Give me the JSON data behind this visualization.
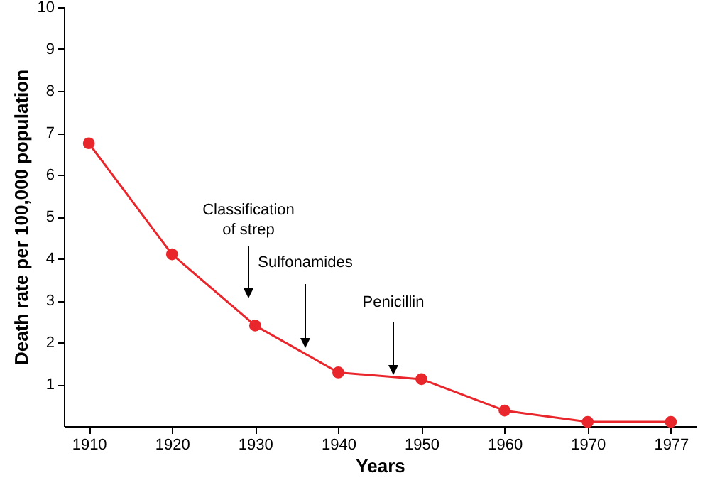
{
  "chart_data": {
    "type": "line",
    "xlabel": "Years",
    "ylabel": "Death rate per 100,000 population",
    "categories": [
      "1910",
      "1920",
      "1930",
      "1940",
      "1950",
      "1960",
      "1970",
      "1977"
    ],
    "series": [
      {
        "color": "#e8262b",
        "values": [
          6.75,
          4.1,
          2.4,
          1.28,
          1.12,
          0.37,
          0.1,
          0.1
        ]
      }
    ],
    "ylim": [
      0,
      10
    ],
    "yticks": [
      1,
      2,
      3,
      4,
      5,
      6,
      7,
      8,
      9,
      10
    ],
    "grid": false,
    "marker": "circle",
    "line_style": "solid",
    "annotations": [
      "Classification\nof strep",
      "Sulfonamides",
      "Penicillin"
    ]
  }
}
